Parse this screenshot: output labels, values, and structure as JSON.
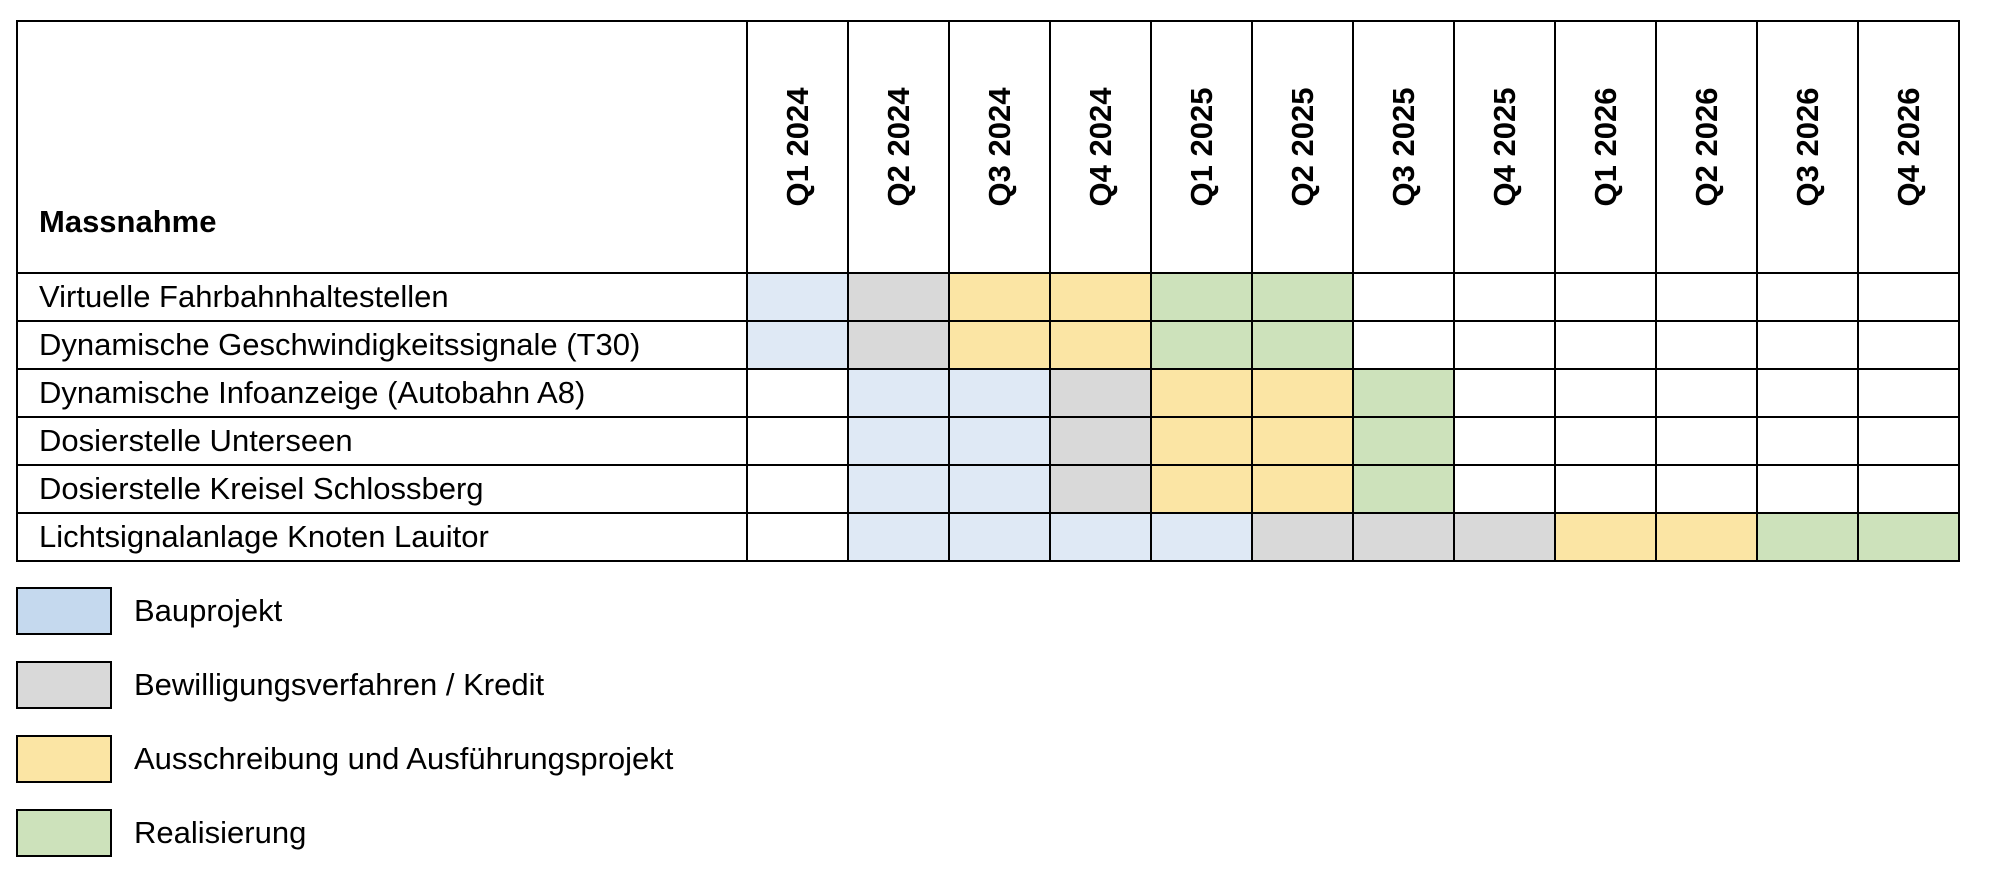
{
  "chart_data": {
    "type": "table",
    "title": "",
    "header": {
      "name_label": "Massnahme"
    },
    "quarters": [
      "Q1 2024",
      "Q2 2024",
      "Q3 2024",
      "Q4 2024",
      "Q1 2025",
      "Q2 2025",
      "Q3 2025",
      "Q4 2025",
      "Q1 2026",
      "Q2 2026",
      "Q3 2026",
      "Q4 2026"
    ],
    "rows": [
      {
        "name": "Virtuelle Fahrbahnhaltestellen",
        "phases": [
          "B",
          "K",
          "A",
          "A",
          "R",
          "R",
          "",
          "",
          "",
          "",
          "",
          ""
        ]
      },
      {
        "name": "Dynamische Geschwindigkeitssignale (T30)",
        "phases": [
          "B",
          "K",
          "A",
          "A",
          "R",
          "R",
          "",
          "",
          "",
          "",
          "",
          ""
        ]
      },
      {
        "name": "Dynamische Infoanzeige (Autobahn A8)",
        "phases": [
          "",
          "B",
          "B",
          "K",
          "A",
          "A",
          "R",
          "",
          "",
          "",
          "",
          ""
        ]
      },
      {
        "name": "Dosierstelle Unterseen",
        "phases": [
          "",
          "B",
          "B",
          "K",
          "A",
          "A",
          "R",
          "",
          "",
          "",
          "",
          ""
        ]
      },
      {
        "name": "Dosierstelle Kreisel Schlossberg",
        "phases": [
          "",
          "B",
          "B",
          "K",
          "A",
          "A",
          "R",
          "",
          "",
          "",
          "",
          ""
        ]
      },
      {
        "name": "Lichtsignalanlage Knoten Lauitor",
        "phases": [
          "",
          "B",
          "B",
          "B",
          "B",
          "K",
          "K",
          "K",
          "A",
          "A",
          "R",
          "R"
        ]
      }
    ],
    "legend": [
      {
        "code": "B",
        "label": "Bauprojekt",
        "color": "#dfe9f5",
        "swatch_color": "#c5d9ee"
      },
      {
        "code": "K",
        "label": "Bewilligungsverfahren / Kredit",
        "color": "#d9d9d9",
        "swatch_color": "#d9d9d9"
      },
      {
        "code": "A",
        "label": "Ausschreibung und Ausführungsprojekt",
        "color": "#fbe5a4",
        "swatch_color": "#fbe5a4"
      },
      {
        "code": "R",
        "label": "Realisierung",
        "color": "#cde2bb",
        "swatch_color": "#cde2bb"
      }
    ]
  }
}
